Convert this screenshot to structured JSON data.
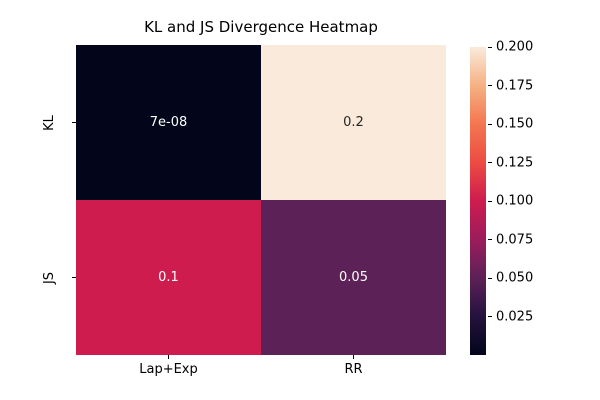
{
  "figure": {
    "background": "#ffffff"
  },
  "chart_data": {
    "type": "heatmap",
    "title": "KL and JS Divergence Heatmap",
    "rows": [
      "KL",
      "JS"
    ],
    "columns": [
      "Lap+Exp",
      "RR"
    ],
    "values": [
      [
        7e-08,
        0.2
      ],
      [
        0.1,
        0.05
      ]
    ],
    "cell_labels": [
      [
        "7e-08",
        "0.2"
      ],
      [
        "0.1",
        "0.05"
      ]
    ],
    "cell_colors": [
      [
        "#03051a",
        "#faeadb"
      ],
      [
        "#ce1c4e",
        "#5c2157"
      ]
    ],
    "cell_text_colors": [
      [
        "#ffffff",
        "#262626"
      ],
      [
        "#ffffff",
        "#ffffff"
      ]
    ],
    "colormap": "rocket",
    "vmin": 0,
    "vmax": 0.2,
    "grid": false,
    "colorbar": {
      "position": "right",
      "ticks": [
        "0.200",
        "0.175",
        "0.150",
        "0.125",
        "0.100",
        "0.075",
        "0.050",
        "0.025"
      ],
      "gradient_stops_bottom_to_top": [
        "#03051a",
        "#24123e",
        "#5c2157",
        "#9b1d5c",
        "#ce1c4e",
        "#ec4c43",
        "#f37651",
        "#f5b183",
        "#faeadb"
      ]
    }
  }
}
